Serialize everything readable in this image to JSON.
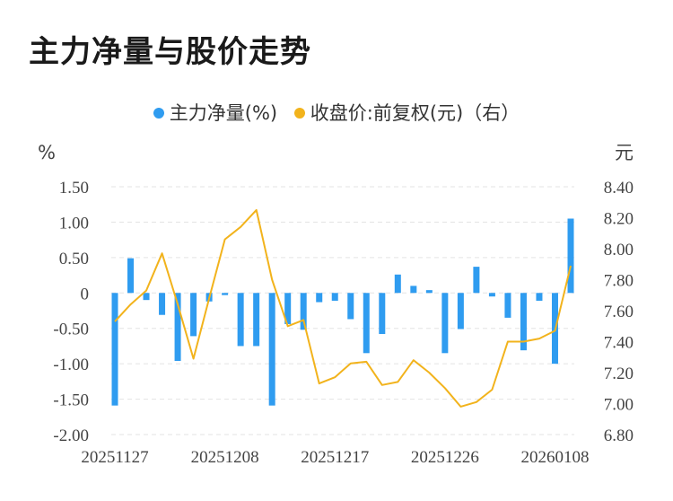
{
  "title": "主力净量与股价走势",
  "colors": {
    "bar": "#2f9cf0",
    "line": "#f2b31c",
    "grid": "#e3e3e3"
  },
  "chart_data": {
    "type": "bar+line",
    "legend": [
      "主力净量(%)",
      "收盘价:前复权(元)（右）"
    ],
    "left_unit": "%",
    "right_unit": "元",
    "x_labels": [
      "20251127",
      "20251208",
      "20251217",
      "20251226",
      "20260108"
    ],
    "x_label_index": [
      0,
      7,
      14,
      21,
      28
    ],
    "y_left": {
      "min": -2.0,
      "max": 1.5,
      "ticks": [
        "1.50",
        "1.00",
        "0.50",
        "0",
        "-0.50",
        "-1.00",
        "-1.50",
        "-2.00"
      ]
    },
    "y_right": {
      "min": 6.8,
      "max": 8.4,
      "ticks": [
        "8.40",
        "8.20",
        "8.00",
        "7.80",
        "7.60",
        "7.40",
        "7.20",
        "7.00",
        "6.80"
      ]
    },
    "series": [
      {
        "name": "主力净量(%)",
        "type": "bar",
        "axis": "left",
        "values": [
          -1.59,
          0.49,
          -0.1,
          -0.31,
          -0.96,
          -0.61,
          -0.12,
          -0.03,
          -0.75,
          -0.75,
          -1.59,
          -0.44,
          -0.52,
          -0.13,
          -0.11,
          -0.37,
          -0.85,
          -0.58,
          0.26,
          0.1,
          0.04,
          -0.85,
          -0.51,
          0.37,
          -0.05,
          -0.35,
          -0.81,
          -0.11,
          -1.0,
          1.05
        ]
      },
      {
        "name": "收盘价:前复权(元)（右）",
        "type": "line",
        "axis": "right",
        "values": [
          7.53,
          7.64,
          7.73,
          7.97,
          7.64,
          7.29,
          7.68,
          8.06,
          8.14,
          8.25,
          7.8,
          7.5,
          7.54,
          7.13,
          7.17,
          7.26,
          7.27,
          7.12,
          7.14,
          7.28,
          7.2,
          7.1,
          6.98,
          7.01,
          7.09,
          7.4,
          7.4,
          7.42,
          7.47,
          7.89
        ]
      }
    ]
  }
}
